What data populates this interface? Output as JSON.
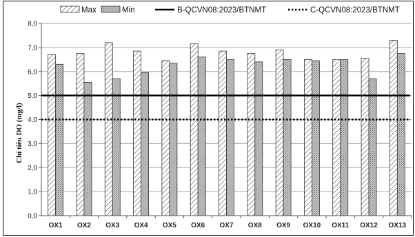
{
  "chart_data": {
    "type": "bar",
    "title": "",
    "xlabel": "",
    "ylabel": "Chỉ tiêu DO (mg/l)",
    "ylim": [
      0,
      8
    ],
    "yticks": [
      "0,0",
      "1,0",
      "2,0",
      "3,0",
      "4,0",
      "5,0",
      "6,0",
      "7,0",
      "8,0"
    ],
    "grid": true,
    "legend_position": "top",
    "categories": [
      "OX1",
      "OX2",
      "OX3",
      "OX4",
      "OX5",
      "OX6",
      "OX7",
      "OX8",
      "OX9",
      "OX10",
      "OX11",
      "OX12",
      "OX13"
    ],
    "series": [
      {
        "name": "Max",
        "pattern": "diagonal-hatch",
        "values": [
          6.7,
          6.75,
          7.2,
          6.85,
          6.45,
          7.15,
          6.85,
          6.75,
          6.9,
          6.5,
          6.5,
          6.55,
          7.3
        ]
      },
      {
        "name": "Min",
        "pattern": "crosshatch",
        "values": [
          6.3,
          5.55,
          5.7,
          5.95,
          6.35,
          6.6,
          6.5,
          6.4,
          6.5,
          6.45,
          6.5,
          5.7,
          6.75
        ]
      }
    ],
    "reference_lines": [
      {
        "name": "B-QCVN08:2023/BTNMT",
        "value": 5.0,
        "style": "solid"
      },
      {
        "name": "C-QCVN08:2023/BTNMT",
        "value": 4.0,
        "style": "dotted"
      }
    ],
    "colors": {
      "bar_stroke": "#333333",
      "hatch": "#555555",
      "line": "#000000",
      "grid": "#a6a6a6"
    }
  }
}
